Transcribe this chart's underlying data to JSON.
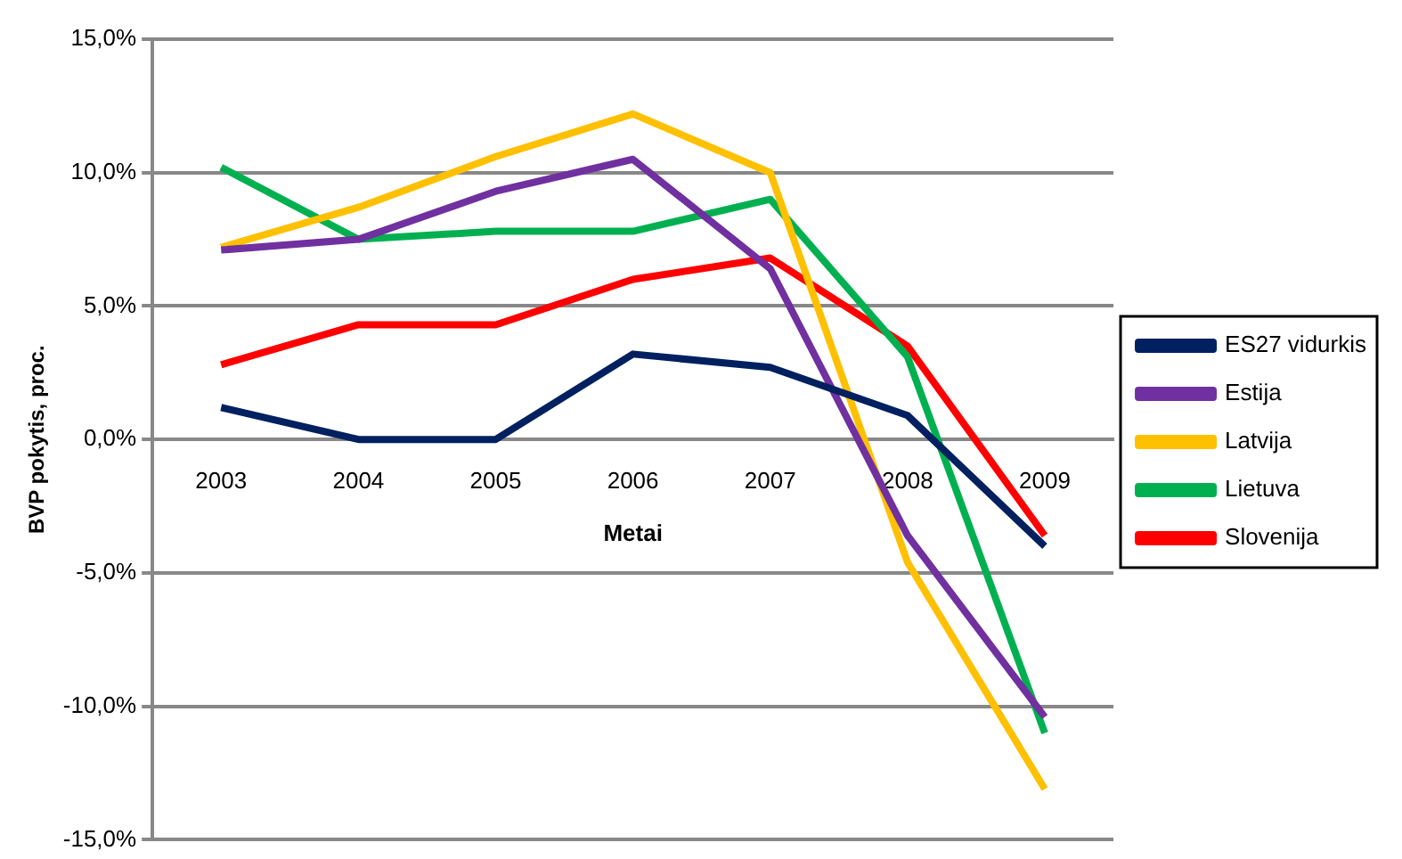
{
  "chart_data": {
    "type": "line",
    "xlabel": "Metai",
    "ylabel": "BVP pokytis, proc.",
    "categories": [
      "2003",
      "2004",
      "2005",
      "2006",
      "2007",
      "2008",
      "2009"
    ],
    "series": [
      {
        "name": "ES27 vidurkis",
        "color": "#002060",
        "values": [
          1.2,
          0,
          0,
          3.2,
          2.7,
          0.9,
          -4.0
        ]
      },
      {
        "name": "Estija",
        "color": "#7030a0",
        "values": [
          7.1,
          7.5,
          9.3,
          10.5,
          6.4,
          -3.6,
          -10.4
        ]
      },
      {
        "name": "Latvija",
        "color": "#ffc000",
        "values": [
          7.2,
          8.7,
          10.6,
          12.2,
          10.0,
          -4.6,
          -13.1
        ]
      },
      {
        "name": "Lietuva",
        "color": "#00b050",
        "values": [
          10.2,
          7.5,
          7.8,
          7.8,
          9.0,
          3.1,
          -11.0
        ]
      },
      {
        "name": "Slovenija",
        "color": "#ff0000",
        "values": [
          2.8,
          4.3,
          4.3,
          6.0,
          6.8,
          3.5,
          -3.6
        ]
      }
    ],
    "ylim": [
      -15,
      15
    ],
    "yticks": [
      {
        "value": -15,
        "label": "-15,0%"
      },
      {
        "value": -10,
        "label": "-10,0%"
      },
      {
        "value": -5,
        "label": "-5,0%"
      },
      {
        "value": 0,
        "label": "0,0%"
      },
      {
        "value": 5,
        "label": "5,0%"
      },
      {
        "value": 10,
        "label": "10,0%"
      },
      {
        "value": 15,
        "label": "15,0%"
      }
    ],
    "grid": "y",
    "legend": "right",
    "marker": "none",
    "line_style": "solid"
  }
}
